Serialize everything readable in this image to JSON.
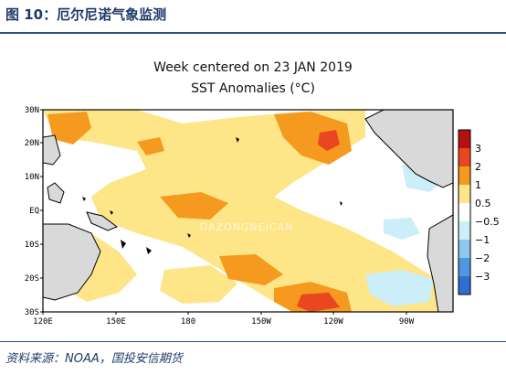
{
  "header": {
    "title": "图 10：厄尔尼诺气象监测"
  },
  "chart": {
    "title_line1": "Week centered on 23 JAN 2019",
    "title_line2": "SST Anomalies (°C)",
    "lat_labels": [
      "30N",
      "20N",
      "10N",
      "EQ",
      "10S",
      "20S",
      "30S"
    ],
    "lon_labels": [
      "120E",
      "150E",
      "180",
      "150W",
      "120W",
      "90W"
    ],
    "colorbar": {
      "labels": [
        "3",
        "2",
        "1",
        "0.5",
        "−0.5",
        "−1",
        "−2",
        "−3"
      ],
      "colors": [
        "#b51010",
        "#e8471f",
        "#f59a1e",
        "#fde588",
        "#ffffff",
        "#cbeef8",
        "#8fc9ee",
        "#4f97de",
        "#2f6fcf"
      ]
    },
    "watermark": "DAZONGNEICAN"
  },
  "footer": {
    "source": "资料来源：NOAA，国投安信期货"
  }
}
